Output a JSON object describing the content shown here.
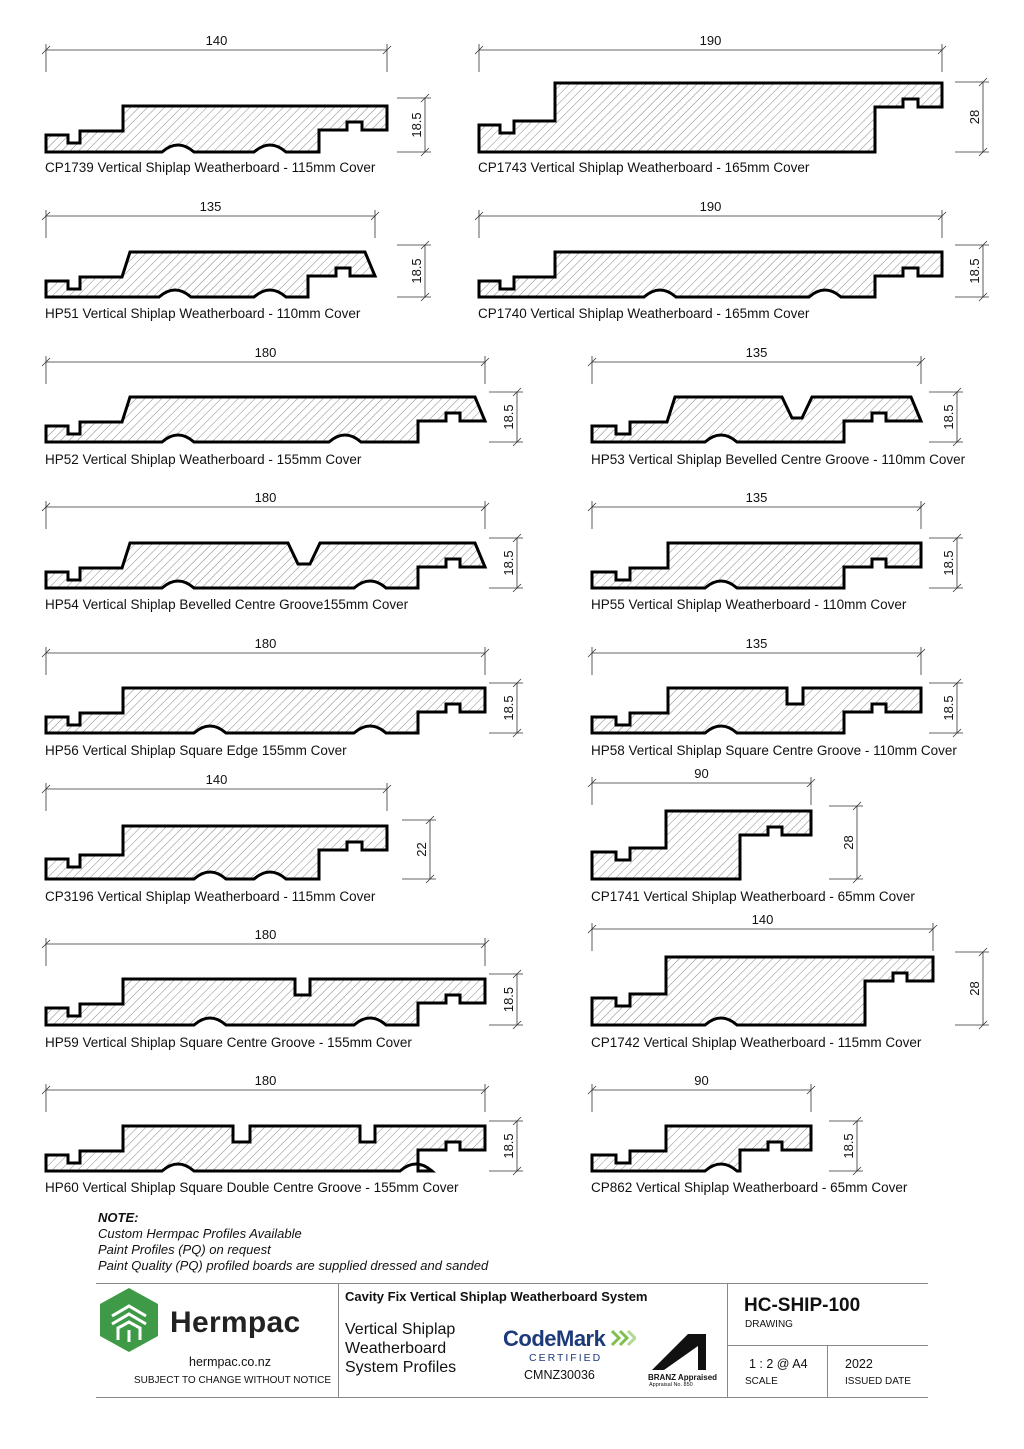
{
  "profiles": [
    {
      "code": "CP1739",
      "caption": "CP1739 Vertical Shiplap Weatherboard - 115mm Cover",
      "width": "140",
      "thickness": "18.5"
    },
    {
      "code": "CP1743",
      "caption": "CP1743 Vertical Shiplap Weatherboard - 165mm Cover",
      "width": "190",
      "thickness": "28"
    },
    {
      "code": "HP51",
      "caption": "HP51 Vertical Shiplap Weatherboard - 110mm Cover",
      "width": "135",
      "thickness": "18.5"
    },
    {
      "code": "CP1740",
      "caption": "CP1740 Vertical Shiplap Weatherboard - 165mm Cover",
      "width": "190",
      "thickness": "18.5"
    },
    {
      "code": "HP52",
      "caption": "HP52 Vertical Shiplap Weatherboard - 155mm Cover",
      "width": "180",
      "thickness": "18.5"
    },
    {
      "code": "HP53",
      "caption": "HP53 Vertical Shiplap Bevelled Centre Groove - 110mm Cover",
      "width": "135",
      "thickness": "18.5"
    },
    {
      "code": "HP54",
      "caption": "HP54 Vertical Shiplap Bevelled Centre Groove155mm Cover",
      "width": "180",
      "thickness": "18.5"
    },
    {
      "code": "HP55",
      "caption": "HP55 Vertical Shiplap Weatherboard - 110mm Cover",
      "width": "135",
      "thickness": "18.5"
    },
    {
      "code": "HP56",
      "caption": "HP56 Vertical Shiplap Square Edge 155mm Cover",
      "width": "180",
      "thickness": "18.5"
    },
    {
      "code": "HP58",
      "caption": "HP58 Vertical Shiplap Square Centre Groove - 110mm Cover",
      "width": "135",
      "thickness": "18.5"
    },
    {
      "code": "CP3196",
      "caption": "CP3196 Vertical Shiplap Weatherboard - 115mm Cover",
      "width": "140",
      "thickness": "22"
    },
    {
      "code": "CP1741",
      "caption": "CP1741 Vertical Shiplap Weatherboard - 65mm Cover",
      "width": "90",
      "thickness": "28"
    },
    {
      "code": "HP59",
      "caption": "HP59 Vertical Shiplap Square Centre Groove - 155mm Cover",
      "width": "180",
      "thickness": "18.5"
    },
    {
      "code": "CP1742",
      "caption": "CP1742 Vertical Shiplap Weatherboard - 115mm Cover",
      "width": "140",
      "thickness": "28"
    },
    {
      "code": "HP60",
      "caption": "HP60 Vertical Shiplap Square Double Centre Groove - 155mm Cover",
      "width": "180",
      "thickness": "18.5"
    },
    {
      "code": "CP862",
      "caption": "CP862 Vertical Shiplap Weatherboard - 65mm Cover",
      "width": "90",
      "thickness": "18.5"
    }
  ],
  "note": {
    "title": "NOTE:",
    "lines": [
      "Custom Hermpac Profiles Available",
      "Paint Profiles (PQ) on request",
      "Paint Quality (PQ) profiled boards are supplied dressed and sanded"
    ]
  },
  "titleblock": {
    "brand": "Hermpac",
    "website": "hermpac.co.nz",
    "disclaimer": "SUBJECT TO CHANGE WITHOUT NOTICE",
    "system": "Cavity Fix Vertical Shiplap Weatherboard System",
    "subtitle_lines": [
      "Vertical Shiplap",
      "Weatherboard",
      "System Profiles"
    ],
    "codemark": "CodeMark",
    "codemark_certified": "CERTIFIED",
    "codemark_number": "CMNZ30036",
    "branz": "BRANZ Appraised",
    "branz_no": "Appraisal No. 850",
    "drawing_no": "HC-SHIP-100",
    "drawing_label": "DRAWING",
    "scale": "1 : 2 @ A4",
    "scale_label": "SCALE",
    "issued": "2022",
    "issued_label": "ISSUED DATE"
  },
  "colors": {
    "brand_green": "#3f9a47",
    "codemark_blue": "#1d3a7a",
    "codemark_green": "#7fbf4d"
  }
}
